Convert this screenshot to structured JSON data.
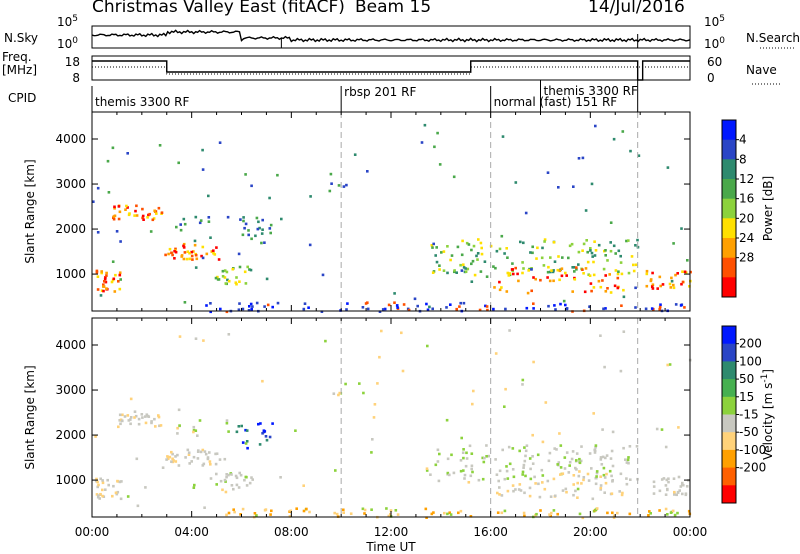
{
  "header": {
    "title": "Christmas Valley East (fitACF)",
    "beam": "Beam 15",
    "date": "14/Jul/2016"
  },
  "top_panels": {
    "nsky_label": "N.Sky",
    "nsky_ticks": [
      "10^5",
      "10^0"
    ],
    "nsearch_label": "N.Search",
    "freq_label_1": "Freq.",
    "freq_label_2": "[MHz]",
    "freq_ticks": [
      "18",
      "8"
    ],
    "nave_label": "Nave",
    "nave_ticks": [
      "60",
      "0"
    ],
    "cpid_label": "CPID",
    "cpid_segments": [
      {
        "label": "themis 3300 RF",
        "start": 0.0,
        "end": 10.0
      },
      {
        "label": "rbsp 201 RF",
        "start": 10.0,
        "end": 16.0
      },
      {
        "label": "normal (fast) 151 RF",
        "start": 16.0,
        "end": 21.9
      },
      {
        "label": "themis 3300 RF",
        "start": 18.0,
        "end": 21.9
      }
    ]
  },
  "chart_data": [
    {
      "type": "heatmap",
      "name": "power",
      "ylabel": "Slant Range [km]",
      "y_ticks": [
        1000,
        2000,
        3000,
        4000
      ],
      "ylim": [
        180,
        4600
      ],
      "xlim": [
        0,
        24
      ],
      "colorbar_label": "Power [dB]",
      "colorbar_ticks": [
        "4",
        "8",
        "12",
        "16",
        "20",
        "24",
        "28"
      ],
      "colorbar_colors": [
        "#0018ff",
        "#2a45c6",
        "#2e8a6e",
        "#4aa84a",
        "#8cd23c",
        "#ffe000",
        "#ffa000",
        "#ff5000",
        "#ff0000"
      ]
    },
    {
      "type": "heatmap",
      "name": "velocity",
      "ylabel": "Slant Range [km]",
      "xlabel": "Time UT",
      "x_ticks": [
        "00:00",
        "04:00",
        "08:00",
        "12:00",
        "16:00",
        "20:00",
        "00:00"
      ],
      "y_ticks": [
        1000,
        2000,
        3000,
        4000
      ],
      "ylim": [
        180,
        4600
      ],
      "xlim": [
        0,
        24
      ],
      "colorbar_label": "Velocity [m s^-1]",
      "colorbar_ticks": [
        "200",
        "100",
        "50",
        "15",
        "-15",
        "-50",
        "-100",
        "-200"
      ],
      "colorbar_colors": [
        "#0018ff",
        "#2a45c6",
        "#2e8a6e",
        "#46b050",
        "#8cd23c",
        "#c8c8c0",
        "#ffd27a",
        "#ffa000",
        "#ff6000",
        "#ff0000"
      ]
    }
  ]
}
